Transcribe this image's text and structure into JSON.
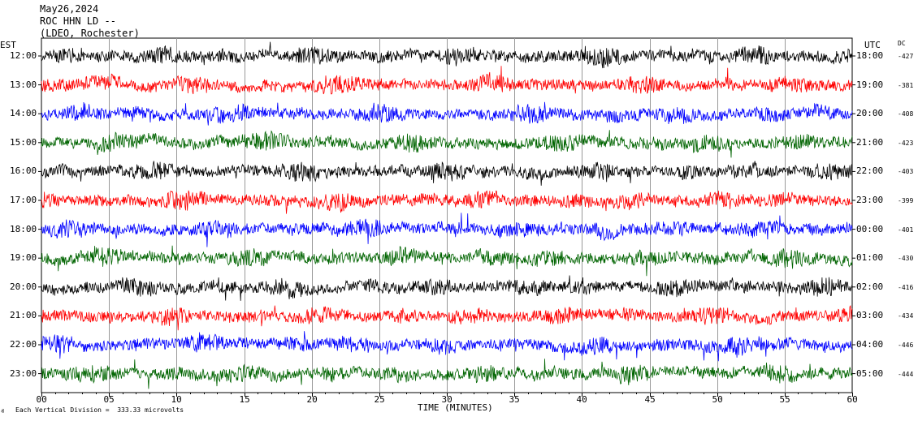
{
  "header": {
    "date": "May26,2024",
    "station": "ROC HHN LD --",
    "network": "(LDEO, Rochester)"
  },
  "chart_data": {
    "type": "line",
    "title": "May26,2024 ROC HHN LD -- (LDEO, Rochester)",
    "xlabel": "TIME (MINUTES)",
    "left_axis_title": "EST",
    "right_axis_title": "UTC",
    "dc_title": "DC",
    "xlim": [
      0,
      60
    ],
    "x_ticks": [
      "00",
      "05",
      "10",
      "15",
      "20",
      "25",
      "30",
      "35",
      "40",
      "45",
      "50",
      "55",
      "60"
    ],
    "trace_colors": [
      "#000000",
      "#ff0000",
      "#0000ff",
      "#006400"
    ],
    "rows": [
      {
        "est": "12:00",
        "utc": "18:00",
        "dc": "-427",
        "color": "#000000"
      },
      {
        "est": "13:00",
        "utc": "19:00",
        "dc": "-381",
        "color": "#ff0000"
      },
      {
        "est": "14:00",
        "utc": "20:00",
        "dc": "-408",
        "color": "#0000ff"
      },
      {
        "est": "15:00",
        "utc": "21:00",
        "dc": "-423",
        "color": "#006400"
      },
      {
        "est": "16:00",
        "utc": "22:00",
        "dc": "-403",
        "color": "#000000"
      },
      {
        "est": "17:00",
        "utc": "23:00",
        "dc": "-399",
        "color": "#ff0000"
      },
      {
        "est": "18:00",
        "utc": "00:00",
        "dc": "-401",
        "color": "#0000ff"
      },
      {
        "est": "19:00",
        "utc": "01:00",
        "dc": "-430",
        "color": "#006400"
      },
      {
        "est": "20:00",
        "utc": "02:00",
        "dc": "-416",
        "color": "#000000"
      },
      {
        "est": "21:00",
        "utc": "03:00",
        "dc": "-434",
        "color": "#ff0000"
      },
      {
        "est": "22:00",
        "utc": "04:00",
        "dc": "-446",
        "color": "#0000ff"
      },
      {
        "est": "23:00",
        "utc": "05:00",
        "dc": "-444",
        "color": "#006400"
      }
    ],
    "scale_note": "Each Vertical Division =  333.33 microvolts",
    "grid": true
  }
}
